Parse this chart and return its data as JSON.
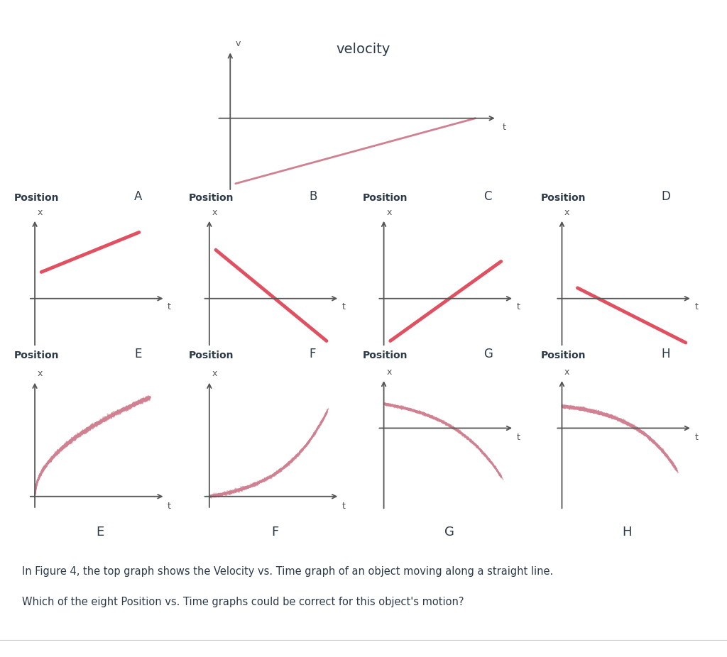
{
  "fig_width": 10.24,
  "fig_height": 9.26,
  "bg_color": "#ffffff",
  "text_color": "#2d3a4a",
  "line_color_red": "#e05060",
  "line_color_pink": "#d08090",
  "axis_color": "#555555",
  "title_top": "velocity",
  "label_bottom_1": "In Figure 4, the top graph shows the Velocity vs. Time graph of an object moving along a straight line.",
  "label_bottom_2": "Which of the eight Position vs. Time graphs could be correct for this object's motion?"
}
